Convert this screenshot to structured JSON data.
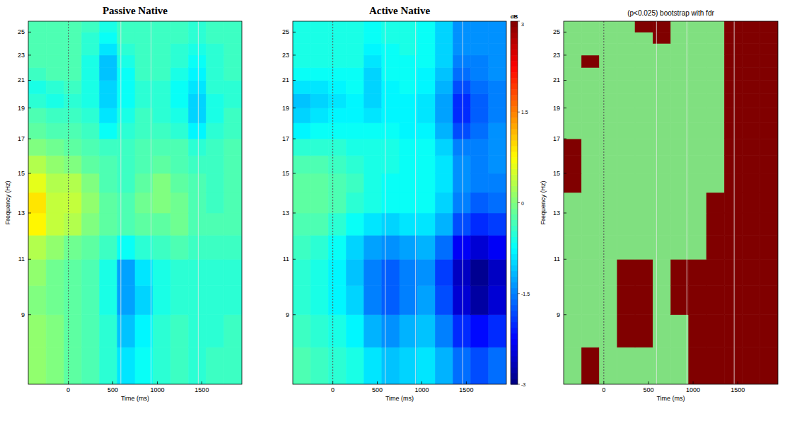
{
  "chart_data": [
    {
      "type": "heatmap",
      "title": "Passive Native",
      "x_label": "Time (ms)",
      "y_label": "Frequency (Hz)",
      "xlim": [
        -450,
        1950
      ],
      "ylim": [
        7,
        26
      ],
      "log": "y",
      "xticks": [
        0,
        500,
        1000,
        1500
      ],
      "yticks": [
        9,
        11,
        13,
        15,
        17,
        19,
        21,
        23,
        25
      ],
      "events": [
        0,
        590,
        930,
        1460
      ],
      "color_range": [
        -3,
        3
      ],
      "x": [
        -350,
        -150,
        50,
        250,
        450,
        650,
        850,
        1050,
        1250,
        1450,
        1650,
        1850
      ],
      "y": [
        7.5,
        8.5,
        9.5,
        10.5,
        11.5,
        12.5,
        13.5,
        14.5,
        15.5,
        16.5,
        17.5,
        18.5,
        19.5,
        20.5,
        21.5,
        22.5,
        23.5,
        24.5,
        25.5
      ],
      "values": [
        [
          0.1,
          0.0,
          -0.2,
          -0.3,
          -0.5,
          -0.9,
          -0.7,
          -0.5,
          -0.4,
          -0.5,
          -0.4,
          -0.4
        ],
        [
          0.1,
          0.0,
          -0.2,
          -0.3,
          -0.5,
          -1.1,
          -0.8,
          -0.5,
          -0.4,
          -0.5,
          -0.5,
          -0.4
        ],
        [
          0.0,
          -0.1,
          -0.2,
          -0.3,
          -0.6,
          -1.3,
          -1.0,
          -0.6,
          -0.5,
          -0.5,
          -0.5,
          -0.5
        ],
        [
          0.1,
          -0.1,
          -0.2,
          -0.3,
          -0.6,
          -1.3,
          -0.9,
          -0.6,
          -0.5,
          -0.5,
          -0.5,
          -0.5
        ],
        [
          0.3,
          0.1,
          -0.1,
          -0.2,
          -0.4,
          -0.7,
          -0.5,
          -0.4,
          -0.3,
          -0.4,
          -0.4,
          -0.4
        ],
        [
          0.8,
          0.4,
          0.3,
          0.0,
          -0.2,
          -0.3,
          -0.2,
          -0.2,
          -0.1,
          -0.3,
          -0.3,
          -0.3
        ],
        [
          0.9,
          0.4,
          0.4,
          0.1,
          -0.2,
          -0.3,
          -0.1,
          0.0,
          -0.1,
          -0.3,
          -0.4,
          -0.3
        ],
        [
          0.6,
          0.3,
          0.3,
          0.0,
          -0.3,
          -0.4,
          -0.2,
          0.0,
          -0.2,
          -0.3,
          -0.4,
          -0.3
        ],
        [
          0.3,
          0.1,
          0.0,
          -0.2,
          -0.3,
          -0.4,
          -0.3,
          -0.2,
          -0.3,
          -0.4,
          -0.4,
          -0.3
        ],
        [
          0.0,
          -0.1,
          -0.2,
          -0.3,
          -0.4,
          -0.4,
          -0.3,
          -0.3,
          -0.3,
          -0.5,
          -0.4,
          -0.3
        ],
        [
          -0.2,
          -0.3,
          -0.3,
          -0.4,
          -0.7,
          -0.5,
          -0.4,
          -0.4,
          -0.5,
          -0.8,
          -0.5,
          -0.4
        ],
        [
          -0.3,
          -0.4,
          -0.4,
          -0.5,
          -0.9,
          -0.6,
          -0.4,
          -0.5,
          -0.6,
          -1.0,
          -0.6,
          -0.4
        ],
        [
          -0.5,
          -0.6,
          -0.5,
          -0.6,
          -1.0,
          -0.7,
          -0.5,
          -0.5,
          -0.7,
          -1.0,
          -0.6,
          -0.5
        ],
        [
          -0.6,
          -0.5,
          -0.4,
          -0.6,
          -1.0,
          -0.7,
          -0.5,
          -0.5,
          -0.7,
          -0.9,
          -0.5,
          -0.5
        ],
        [
          -0.4,
          -0.3,
          -0.3,
          -0.6,
          -1.1,
          -0.7,
          -0.4,
          -0.4,
          -0.6,
          -0.8,
          -0.5,
          -0.4
        ],
        [
          -0.3,
          -0.3,
          -0.3,
          -0.6,
          -1.1,
          -0.6,
          -0.4,
          -0.4,
          -0.5,
          -0.7,
          -0.5,
          -0.4
        ],
        [
          -0.3,
          -0.3,
          -0.3,
          -0.5,
          -0.9,
          -0.5,
          -0.4,
          -0.4,
          -0.5,
          -0.6,
          -0.5,
          -0.4
        ],
        [
          -0.3,
          -0.3,
          -0.3,
          -0.5,
          -0.7,
          -0.4,
          -0.4,
          -0.4,
          -0.4,
          -0.5,
          -0.4,
          -0.4
        ],
        [
          -0.3,
          -0.3,
          -0.3,
          -0.4,
          -0.6,
          -0.4,
          -0.4,
          -0.4,
          -0.4,
          -0.5,
          -0.4,
          -0.4
        ]
      ]
    },
    {
      "type": "heatmap",
      "title": "Active Native",
      "x_label": "Time (ms)",
      "xlim": [
        -450,
        1950
      ],
      "ylim": [
        7,
        26
      ],
      "log": "y",
      "xticks": [
        0,
        500,
        1000,
        1500
      ],
      "yticks": [
        9,
        11,
        13,
        15,
        17,
        19,
        21,
        23,
        25
      ],
      "events": [
        0,
        590,
        930,
        1460
      ],
      "color_range": [
        -3,
        3
      ],
      "color_ticks": [
        3,
        1.5,
        0,
        -1.5,
        -3
      ],
      "color_label": "dB",
      "x": [
        -350,
        -150,
        50,
        250,
        450,
        650,
        850,
        1050,
        1250,
        1450,
        1650,
        1850
      ],
      "y": [
        7.5,
        8.5,
        9.5,
        10.5,
        11.5,
        12.5,
        13.5,
        14.5,
        15.5,
        16.5,
        17.5,
        18.5,
        19.5,
        20.5,
        21.5,
        22.5,
        23.5,
        24.5,
        25.5
      ],
      "values": [
        [
          -0.3,
          -0.4,
          -0.5,
          -0.6,
          -0.9,
          -1.1,
          -1.0,
          -0.9,
          -1.2,
          -1.6,
          -1.8,
          -1.6
        ],
        [
          -0.4,
          -0.5,
          -0.6,
          -0.8,
          -1.2,
          -1.4,
          -1.2,
          -1.1,
          -1.5,
          -2.0,
          -2.2,
          -2.0
        ],
        [
          -0.5,
          -0.6,
          -0.8,
          -1.0,
          -1.5,
          -1.7,
          -1.5,
          -1.3,
          -1.8,
          -2.5,
          -2.8,
          -2.5
        ],
        [
          -0.5,
          -0.6,
          -0.8,
          -1.1,
          -1.5,
          -1.7,
          -1.5,
          -1.4,
          -1.9,
          -2.6,
          -2.9,
          -2.6
        ],
        [
          -0.4,
          -0.5,
          -0.7,
          -1.0,
          -1.3,
          -1.4,
          -1.3,
          -1.2,
          -1.6,
          -2.3,
          -2.5,
          -2.3
        ],
        [
          -0.3,
          -0.3,
          -0.5,
          -0.7,
          -0.9,
          -1.0,
          -0.9,
          -0.9,
          -1.2,
          -1.8,
          -2.0,
          -1.9
        ],
        [
          -0.2,
          -0.2,
          -0.3,
          -0.5,
          -0.6,
          -0.7,
          -0.7,
          -0.7,
          -1.0,
          -1.5,
          -1.7,
          -1.6
        ],
        [
          -0.2,
          -0.2,
          -0.3,
          -0.4,
          -0.6,
          -0.7,
          -0.7,
          -0.7,
          -0.9,
          -1.4,
          -1.5,
          -1.5
        ],
        [
          -0.3,
          -0.3,
          -0.4,
          -0.5,
          -0.6,
          -0.6,
          -0.7,
          -0.7,
          -0.9,
          -1.4,
          -1.5,
          -1.4
        ],
        [
          -0.5,
          -0.5,
          -0.5,
          -0.6,
          -0.6,
          -0.6,
          -0.7,
          -0.7,
          -1.0,
          -1.5,
          -1.5,
          -1.4
        ],
        [
          -0.8,
          -0.7,
          -0.7,
          -0.7,
          -0.7,
          -0.7,
          -0.8,
          -0.8,
          -1.2,
          -1.8,
          -1.6,
          -1.4
        ],
        [
          -1.0,
          -0.9,
          -0.8,
          -0.8,
          -0.9,
          -0.8,
          -0.8,
          -0.9,
          -1.3,
          -2.0,
          -1.7,
          -1.5
        ],
        [
          -1.1,
          -1.0,
          -0.9,
          -0.8,
          -1.0,
          -0.8,
          -0.8,
          -0.9,
          -1.3,
          -2.0,
          -1.7,
          -1.5
        ],
        [
          -0.9,
          -0.9,
          -0.8,
          -0.7,
          -1.0,
          -0.8,
          -0.7,
          -0.8,
          -1.2,
          -1.8,
          -1.6,
          -1.5
        ],
        [
          -0.7,
          -0.7,
          -0.7,
          -0.7,
          -1.0,
          -0.7,
          -0.7,
          -0.8,
          -1.1,
          -1.6,
          -1.5,
          -1.4
        ],
        [
          -0.6,
          -0.6,
          -0.6,
          -0.6,
          -0.9,
          -0.7,
          -0.7,
          -0.7,
          -1.0,
          -1.5,
          -1.5,
          -1.4
        ],
        [
          -0.6,
          -0.6,
          -0.6,
          -0.6,
          -0.8,
          -0.7,
          -0.6,
          -0.7,
          -1.0,
          -1.4,
          -1.4,
          -1.4
        ],
        [
          -0.6,
          -0.6,
          -0.6,
          -0.6,
          -0.7,
          -0.6,
          -0.6,
          -0.7,
          -1.0,
          -1.4,
          -1.4,
          -1.4
        ],
        [
          -0.6,
          -0.6,
          -0.6,
          -0.6,
          -0.7,
          -0.6,
          -0.6,
          -0.7,
          -1.0,
          -1.4,
          -1.4,
          -1.4
        ]
      ]
    },
    {
      "type": "mask",
      "title": "(p<0.025) bootstrap with fdr",
      "x_label": "Time (ms)",
      "y_label": "Frequency (Hz)",
      "xlim": [
        -450,
        1950
      ],
      "ylim": [
        7,
        26
      ],
      "log": "y",
      "xticks": [
        0,
        500,
        1000,
        1500
      ],
      "yticks": [
        9,
        11,
        13,
        15,
        17,
        19,
        21,
        23,
        25
      ],
      "events": [
        0,
        590,
        930,
        1460
      ],
      "colors": [
        "#80e080",
        "#800000"
      ],
      "x": [
        -350,
        -150,
        50,
        250,
        450,
        650,
        850,
        1050,
        1250,
        1450,
        1650,
        1850
      ],
      "y": [
        7.5,
        8.5,
        9.5,
        10.5,
        11.5,
        12.5,
        13.5,
        14.5,
        15.5,
        16.5,
        17.5,
        18.5,
        19.5,
        20.5,
        21.5,
        22.5,
        23.5,
        24.5,
        25.5
      ],
      "values": [
        [
          0,
          1,
          0,
          0,
          0,
          0,
          0,
          1,
          1,
          1,
          1,
          1
        ],
        [
          0,
          0,
          0,
          1,
          1,
          0,
          0,
          1,
          1,
          1,
          1,
          1
        ],
        [
          0,
          0,
          0,
          1,
          1,
          0,
          1,
          1,
          1,
          1,
          1,
          1
        ],
        [
          0,
          0,
          0,
          1,
          1,
          0,
          1,
          1,
          1,
          1,
          1,
          1
        ],
        [
          0,
          0,
          0,
          0,
          0,
          0,
          0,
          0,
          1,
          1,
          1,
          1
        ],
        [
          0,
          0,
          0,
          0,
          0,
          0,
          0,
          0,
          1,
          1,
          1,
          1
        ],
        [
          0,
          0,
          0,
          0,
          0,
          0,
          0,
          0,
          1,
          1,
          1,
          1
        ],
        [
          1,
          0,
          0,
          0,
          0,
          0,
          0,
          0,
          0,
          1,
          1,
          1
        ],
        [
          1,
          0,
          0,
          0,
          0,
          0,
          0,
          0,
          0,
          1,
          1,
          1
        ],
        [
          1,
          0,
          0,
          0,
          0,
          0,
          0,
          0,
          0,
          1,
          1,
          1
        ],
        [
          0,
          0,
          0,
          0,
          0,
          0,
          0,
          0,
          0,
          1,
          1,
          1
        ],
        [
          0,
          0,
          0,
          0,
          0,
          0,
          0,
          0,
          0,
          1,
          1,
          1
        ],
        [
          0,
          0,
          0,
          0,
          0,
          0,
          0,
          0,
          0,
          1,
          1,
          1
        ],
        [
          0,
          0,
          0,
          0,
          0,
          0,
          0,
          0,
          0,
          1,
          1,
          1
        ],
        [
          0,
          0,
          0,
          0,
          0,
          0,
          0,
          0,
          0,
          1,
          1,
          1
        ],
        [
          0,
          1,
          0,
          0,
          0,
          0,
          0,
          0,
          0,
          1,
          1,
          1
        ],
        [
          0,
          0,
          0,
          0,
          0,
          0,
          0,
          0,
          0,
          1,
          1,
          1
        ],
        [
          0,
          0,
          0,
          0,
          0,
          1,
          0,
          0,
          0,
          1,
          1,
          1
        ],
        [
          0,
          0,
          0,
          0,
          1,
          1,
          0,
          0,
          0,
          1,
          1,
          1
        ]
      ]
    }
  ]
}
